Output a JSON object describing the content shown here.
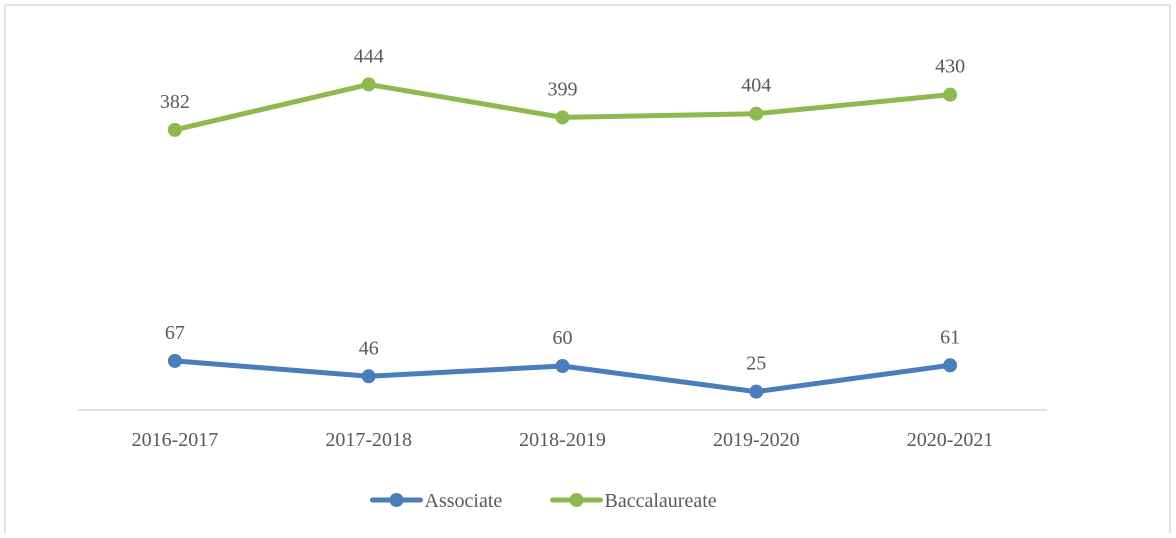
{
  "chart_data": {
    "type": "line",
    "title": "",
    "xlabel": "",
    "ylabel": "",
    "categories": [
      "2016-2017",
      "2017-2018",
      "2018-2019",
      "2019-2020",
      "2020-2021"
    ],
    "series": [
      {
        "name": "Associate",
        "values": [
          67,
          46,
          60,
          25,
          61
        ],
        "color": "#4a7ebb"
      },
      {
        "name": "Baccalaureate",
        "values": [
          382,
          444,
          399,
          404,
          430
        ],
        "color": "#8db94f"
      }
    ],
    "ylim": [
      0,
      480
    ],
    "y_axis_visible": false,
    "grid": false,
    "legend_position": "bottom",
    "markers": "circle",
    "data_labels": true
  }
}
